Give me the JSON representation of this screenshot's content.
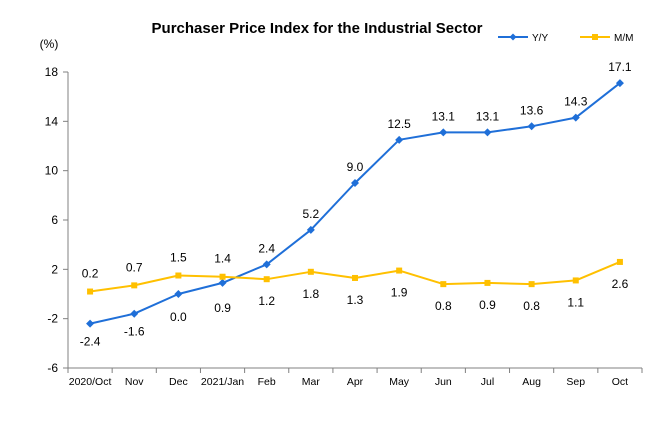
{
  "chart_data": {
    "type": "line",
    "title": "Purchaser Price Index for the Industrial  Sector",
    "unit_label": "(%)",
    "categories": [
      "2020/Oct",
      "Nov",
      "Dec",
      "2021/Jan",
      "Feb",
      "Mar",
      "Apr",
      "May",
      "Jun",
      "Jul",
      "Aug",
      "Sep",
      "Oct"
    ],
    "ylim": [
      -6,
      18
    ],
    "yticks": [
      -6,
      -2,
      2,
      6,
      10,
      14,
      18
    ],
    "grid": false,
    "legend_position": "top-right",
    "series": [
      {
        "name": "Y/Y",
        "color": "#1F6FD8",
        "marker": "diamond",
        "values": [
          -2.4,
          -1.6,
          0.0,
          0.9,
          2.4,
          5.2,
          9.0,
          12.5,
          13.1,
          13.1,
          13.6,
          14.3,
          17.1
        ],
        "labels": [
          "-2.4",
          "-1.6",
          "0.0",
          "0.9",
          "2.4",
          "5.2",
          "9.0",
          "12.5",
          "13.1",
          "13.1",
          "13.6",
          "14.3",
          "17.1"
        ]
      },
      {
        "name": "M/M",
        "color": "#FFC000",
        "marker": "square",
        "values": [
          0.2,
          0.7,
          1.5,
          1.4,
          1.2,
          1.8,
          1.3,
          1.9,
          0.8,
          0.9,
          0.8,
          1.1,
          2.6
        ],
        "labels": [
          "0.2",
          "0.7",
          "1.5",
          "1.4",
          "1.2",
          "1.8",
          "1.3",
          "1.9",
          "0.8",
          "0.9",
          "0.8",
          "1.1",
          "2.6"
        ]
      }
    ]
  }
}
